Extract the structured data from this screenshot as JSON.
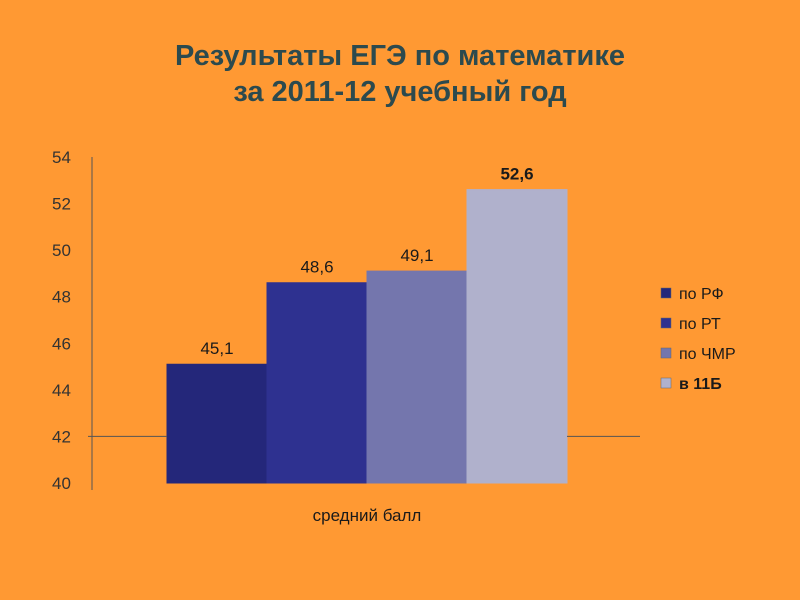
{
  "title": {
    "line1": "Результаты ЕГЭ по математике",
    "line2": "за 2011-12 учебный год"
  },
  "chart_data": {
    "type": "bar",
    "title": "Результаты ЕГЭ по математике за 2011-12 учебный год",
    "categories": [
      "средний балл"
    ],
    "xlabel": "средний балл",
    "ylabel": "",
    "ylim": [
      40,
      54
    ],
    "yticks": [
      "40",
      "42",
      "44",
      "46",
      "48",
      "50",
      "52",
      "54"
    ],
    "baseline": 42,
    "legend_position": "right",
    "series": [
      {
        "name": "по РФ",
        "value": 45.1,
        "label": "45,1",
        "color": "#24277A",
        "bold": false
      },
      {
        "name": "по РТ",
        "value": 48.6,
        "label": "48,6",
        "color": "#2E3190",
        "bold": false
      },
      {
        "name": "по ЧМР",
        "value": 49.1,
        "label": "49,1",
        "color": "#7476AD",
        "bold": false
      },
      {
        "name": "в 11Б",
        "value": 52.6,
        "label": "52,6",
        "color": "#B0B1CC",
        "bold": true
      }
    ]
  }
}
